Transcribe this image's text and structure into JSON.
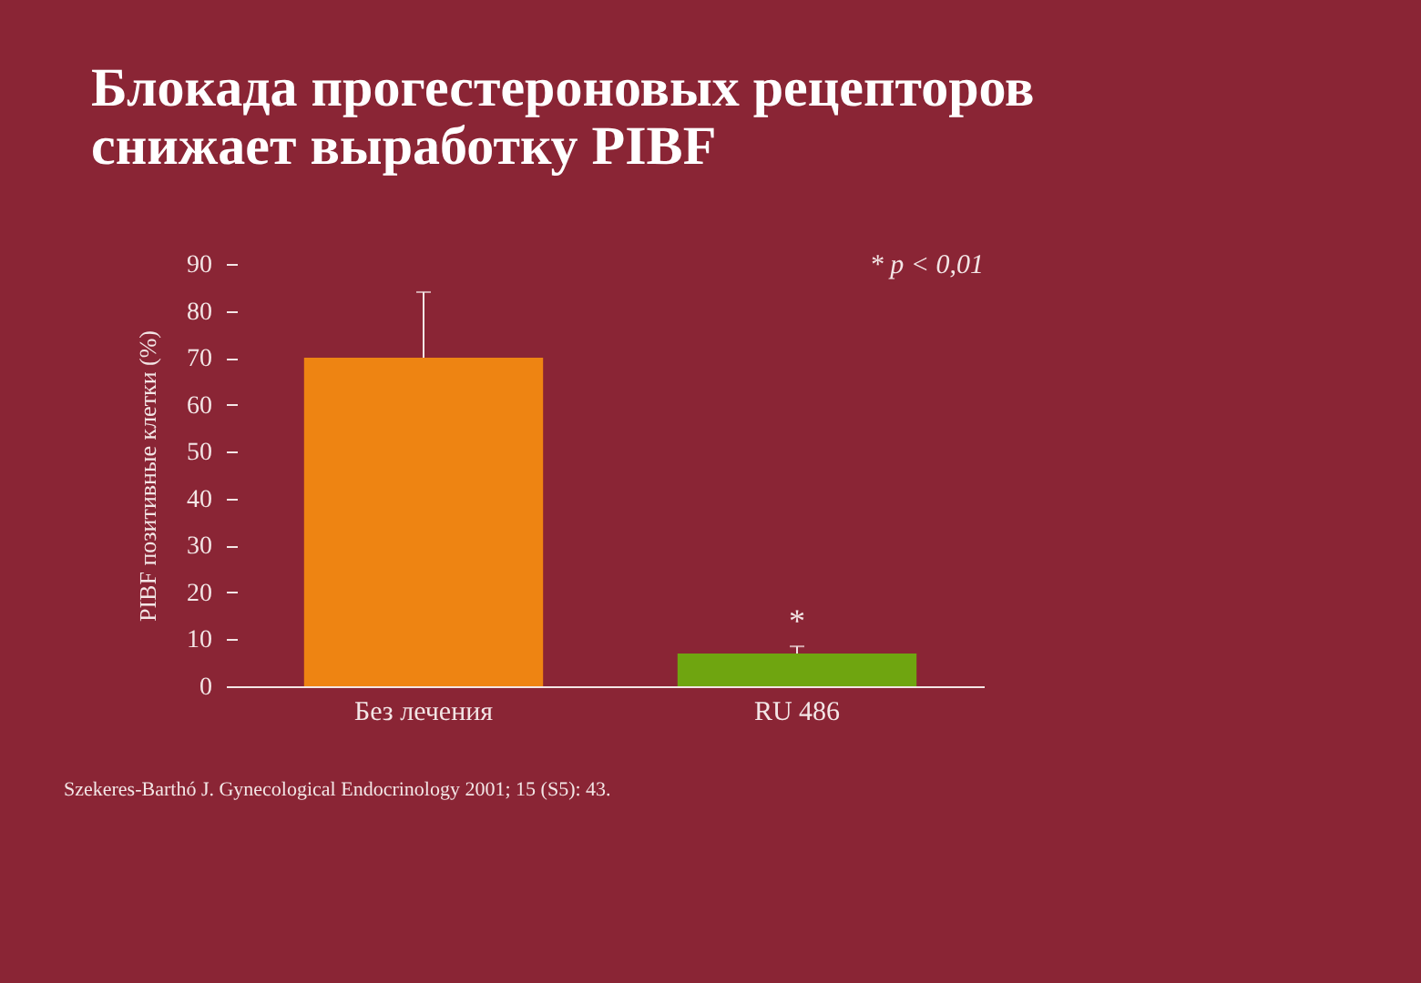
{
  "chart_data": {
    "type": "bar",
    "title": "Блокада прогестероновых рецепторов\nснижает выработку PIBF",
    "ylabel": "PIBF позитивные клетки (%)",
    "categories": [
      "Без лечения",
      "RU 486"
    ],
    "values": [
      70,
      7
    ],
    "colors": [
      "#ee8412",
      "#6fa510"
    ],
    "errors": [
      14,
      1.5
    ],
    "ylim": [
      0,
      90
    ],
    "yticks": [
      0,
      10,
      20,
      30,
      40,
      50,
      60,
      70,
      80,
      90
    ],
    "grid": false,
    "annotations": [
      "* p < 0,01",
      {
        "text": "*",
        "x": "RU 486",
        "y": 10
      },
      "Szekeres-Barthó J. Gynecological Endocrinology 2001; 15 (S5): 43."
    ]
  }
}
